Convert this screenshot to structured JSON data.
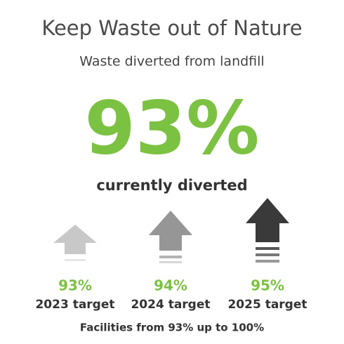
{
  "header": {
    "title": "Keep Waste out of Nature",
    "subtitle": "Waste diverted from landfill"
  },
  "headline": {
    "value": "93%",
    "caption": "currently diverted"
  },
  "targets": [
    {
      "value": "93%",
      "label": "2023 target"
    },
    {
      "value": "94%",
      "label": "2024 target"
    },
    {
      "value": "95%",
      "label": "2025 target"
    }
  ],
  "footer": "Facilities from 93% up to 100%"
}
